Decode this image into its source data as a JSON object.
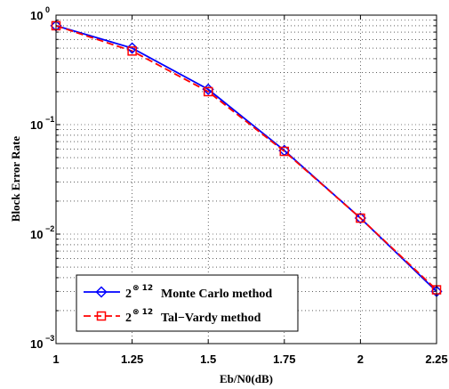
{
  "chart_data": {
    "type": "line",
    "xlabel": "Eb/N0(dB)",
    "ylabel": "Block Error Rate",
    "xlim": [
      1,
      2.25
    ],
    "ylim": [
      0.001,
      1
    ],
    "yscale": "log",
    "grid": true,
    "legend_position": "bottom-left",
    "x_ticks": [
      "1",
      "1.25",
      "1.5",
      "1.75",
      "2",
      "2.25"
    ],
    "y_ticks": [
      {
        "base": "10",
        "exp": "0"
      },
      {
        "base": "10",
        "exp": "−1"
      },
      {
        "base": "10",
        "exp": "−2"
      },
      {
        "base": "10",
        "exp": "−3"
      }
    ],
    "x": [
      1,
      1.25,
      1.5,
      1.75,
      2,
      2.25
    ],
    "series": [
      {
        "name_base": "2",
        "name_sup": "⊗ 12",
        "name_rest": "Monte Carlo method",
        "color": "#0000ff",
        "marker": "diamond",
        "linestyle": "solid",
        "values": [
          0.8,
          0.5,
          0.21,
          0.058,
          0.014,
          0.003
        ]
      },
      {
        "name_base": "2",
        "name_sup": "⊗ 12",
        "name_rest": "Tal−Vardy method",
        "color": "#ff0000",
        "marker": "square",
        "linestyle": "dashed",
        "values": [
          0.8,
          0.47,
          0.2,
          0.057,
          0.014,
          0.0031
        ]
      }
    ]
  }
}
